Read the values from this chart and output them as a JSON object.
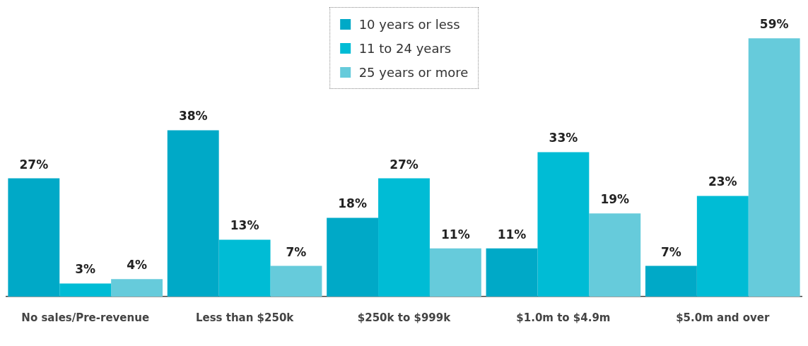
{
  "chart_data": {
    "type": "bar",
    "categories": [
      "No sales/Pre-revenue",
      "Less than $250k",
      "$250k to $999k",
      "$1.0m to $4.9m",
      "$5.0m and over"
    ],
    "series": [
      {
        "name": "10 years or less",
        "color": "#00a9c7",
        "values": [
          27,
          38,
          18,
          11,
          7
        ],
        "value_labels": [
          "27%",
          "38%",
          "18%",
          "11%",
          "7%"
        ]
      },
      {
        "name": "11 to 24 years",
        "color": "#00bcd5",
        "values": [
          3,
          13,
          27,
          33,
          23
        ],
        "value_labels": [
          "3%",
          "13%",
          "27%",
          "33%",
          "23%"
        ]
      },
      {
        "name": "25 years or more",
        "color": "#66cbdb",
        "values": [
          4,
          7,
          11,
          19,
          59
        ],
        "value_labels": [
          "4%",
          "7%",
          "11%",
          "19%",
          "59%"
        ]
      }
    ],
    "legend": "top",
    "grid": false,
    "tick_labels": "x"
  }
}
